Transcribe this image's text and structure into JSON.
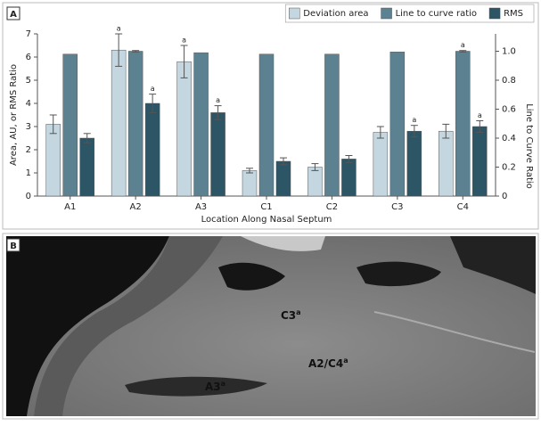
{
  "chart_data": {
    "type": "bar",
    "panel_label": "A",
    "y_label": "Area, AU, or RMS Ratio",
    "y2_label": "Line to Curve Ratio",
    "x_label": "Location Along Nasal Septum",
    "categories": [
      "A1",
      "A2",
      "A3",
      "C1",
      "C2",
      "C3",
      "C4"
    ],
    "series": [
      {
        "name": "Deviation area",
        "color": "#c4d6df",
        "values": [
          3.1,
          6.3,
          5.8,
          1.1,
          1.25,
          2.75,
          2.8
        ],
        "errors": [
          0.4,
          0.7,
          0.7,
          0.1,
          0.15,
          0.25,
          0.3
        ],
        "notes": [
          null,
          "a",
          "a",
          null,
          null,
          null,
          null
        ]
      },
      {
        "name": "Line to curve ratio",
        "color": "#5c8292",
        "axis": "y2",
        "values": [
          0.98,
          1.0,
          0.99,
          0.98,
          0.98,
          0.995,
          1.0
        ],
        "errors": [
          0,
          0.005,
          0,
          0,
          0,
          0,
          0.005
        ],
        "notes": [
          null,
          null,
          null,
          null,
          null,
          null,
          "a"
        ]
      },
      {
        "name": "RMS",
        "color": "#2c5565",
        "values": [
          2.5,
          4.0,
          3.6,
          1.5,
          1.6,
          2.8,
          3.0
        ],
        "errors": [
          0.2,
          0.4,
          0.3,
          0.15,
          0.15,
          0.25,
          0.25
        ],
        "notes": [
          null,
          "a",
          "a",
          null,
          null,
          "a",
          "a"
        ]
      }
    ],
    "ylim": [
      0,
      7
    ],
    "yticks": [
      0,
      1,
      2,
      3,
      4,
      5,
      6,
      7
    ],
    "y2lim": [
      0,
      1.12
    ],
    "y2ticks": [
      0,
      0.2,
      0.4,
      0.6,
      0.8,
      {
        "value": 1,
        "label": "1.0"
      }
    ],
    "legend": "top-right"
  },
  "image_panel": {
    "panel_label": "B",
    "labels": [
      {
        "text": "C3",
        "sup": "a"
      },
      {
        "text": "A2/C4",
        "sup": "a"
      },
      {
        "text": "A3",
        "sup": "a"
      }
    ]
  }
}
